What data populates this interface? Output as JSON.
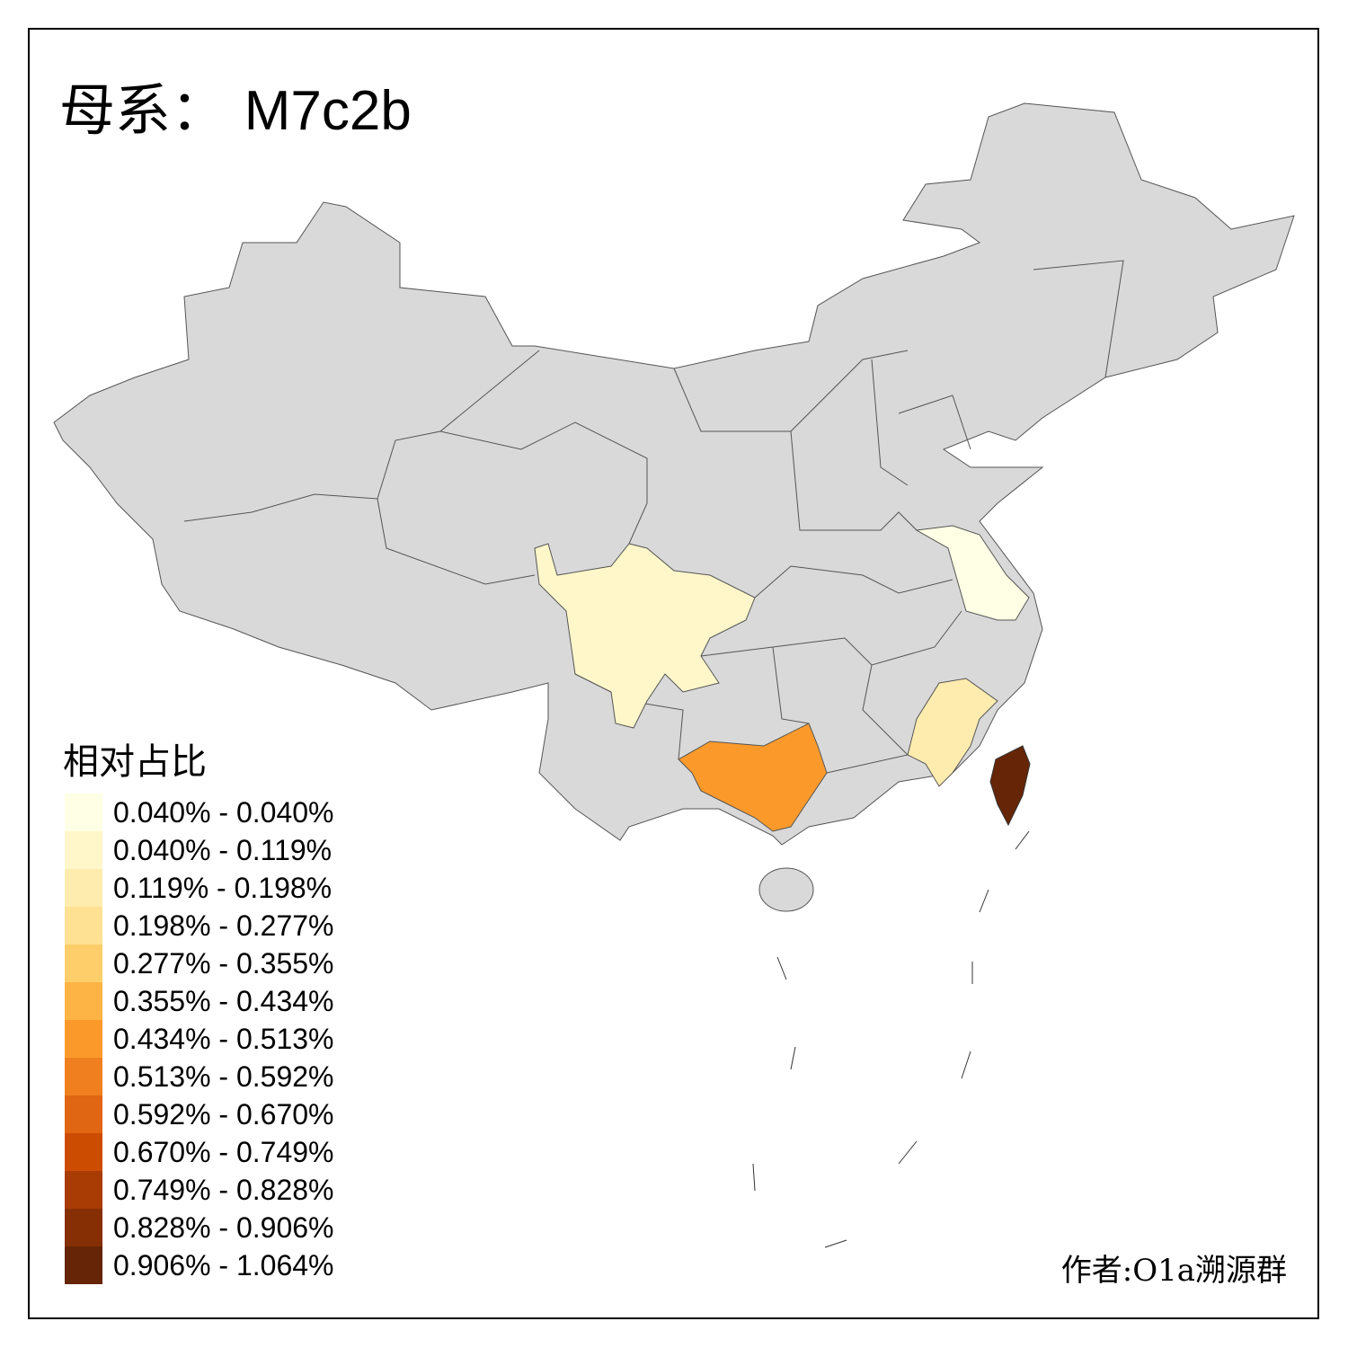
{
  "title": {
    "prefix": "母系：",
    "haplogroup": "M7c2b"
  },
  "legend": {
    "title": "相对占比",
    "items": [
      {
        "label": "0.040% - 0.040%",
        "color": "#FFFFE5"
      },
      {
        "label": "0.040% - 0.119%",
        "color": "#FFF7CA"
      },
      {
        "label": "0.119% - 0.198%",
        "color": "#FEECAE"
      },
      {
        "label": "0.198% - 0.277%",
        "color": "#FEE193"
      },
      {
        "label": "0.277% - 0.355%",
        "color": "#FECE6A"
      },
      {
        "label": "0.355% - 0.434%",
        "color": "#FEB444"
      },
      {
        "label": "0.434% - 0.513%",
        "color": "#FB9A2B"
      },
      {
        "label": "0.513% - 0.592%",
        "color": "#F0801F"
      },
      {
        "label": "0.592% - 0.670%",
        "color": "#E06613"
      },
      {
        "label": "0.670% - 0.749%",
        "color": "#CC4C02"
      },
      {
        "label": "0.749% - 0.828%",
        "color": "#A83C04"
      },
      {
        "label": "0.828% - 0.906%",
        "color": "#862F05"
      },
      {
        "label": "0.906% - 1.064%",
        "color": "#662506"
      }
    ]
  },
  "regions": [
    {
      "name": "Jiangsu",
      "class": "0.040% - 0.040%",
      "color": "#FFFFE5"
    },
    {
      "name": "Sichuan",
      "class": "0.040% - 0.119%",
      "color": "#FFF7CA"
    },
    {
      "name": "Fujian",
      "class": "0.119% - 0.198%",
      "color": "#FEECAE"
    },
    {
      "name": "Guangxi",
      "class": "0.434% - 0.513%",
      "color": "#FB9A2B"
    },
    {
      "name": "Taiwan",
      "class": "0.906% - 1.064%",
      "color": "#662506"
    }
  ],
  "no_data_color": "#D9D9D9",
  "author": "作者:O1a溯源群"
}
